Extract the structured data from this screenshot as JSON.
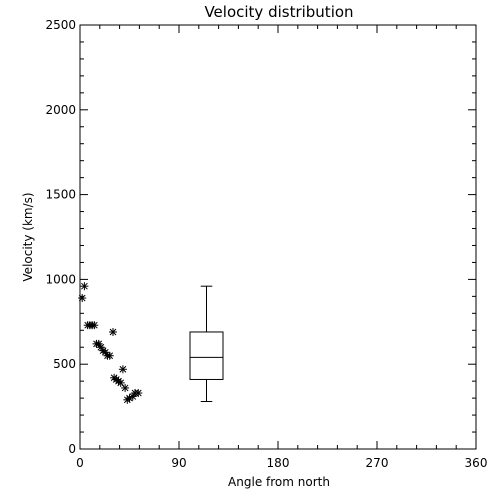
{
  "chart_data": {
    "type": "scatter",
    "title": "Velocity distribution",
    "xlabel": "Angle from north",
    "ylabel": "Velocity (km/s)",
    "xlim": [
      0,
      360
    ],
    "ylim": [
      0,
      2500
    ],
    "xticks": [
      0,
      90,
      180,
      270,
      360
    ],
    "xtick_labels": [
      "0",
      "90",
      "180",
      "270",
      "360"
    ],
    "yticks": [
      0,
      500,
      1000,
      1500,
      2000,
      2500
    ],
    "ytick_labels": [
      "0",
      "500",
      "1000",
      "1500",
      "2000",
      "2500"
    ],
    "grid": false,
    "marker": "asterisk",
    "color": "#000000",
    "points": [
      {
        "x": 2,
        "y": 890
      },
      {
        "x": 4,
        "y": 960
      },
      {
        "x": 7,
        "y": 730
      },
      {
        "x": 9,
        "y": 730
      },
      {
        "x": 11,
        "y": 730
      },
      {
        "x": 13,
        "y": 730
      },
      {
        "x": 15,
        "y": 620
      },
      {
        "x": 17,
        "y": 620
      },
      {
        "x": 19,
        "y": 600
      },
      {
        "x": 21,
        "y": 580
      },
      {
        "x": 23,
        "y": 570
      },
      {
        "x": 25,
        "y": 550
      },
      {
        "x": 27,
        "y": 550
      },
      {
        "x": 30,
        "y": 690
      },
      {
        "x": 31,
        "y": 420
      },
      {
        "x": 33,
        "y": 410
      },
      {
        "x": 35,
        "y": 400
      },
      {
        "x": 37,
        "y": 390
      },
      {
        "x": 39,
        "y": 470
      },
      {
        "x": 41,
        "y": 360
      },
      {
        "x": 43,
        "y": 290
      },
      {
        "x": 45,
        "y": 300
      },
      {
        "x": 48,
        "y": 310
      },
      {
        "x": 50,
        "y": 330
      },
      {
        "x": 53,
        "y": 330
      }
    ],
    "boxplot": {
      "x": 115,
      "width": 30,
      "min": 280,
      "q1": 410,
      "median": 540,
      "q3": 690,
      "max": 960
    }
  }
}
